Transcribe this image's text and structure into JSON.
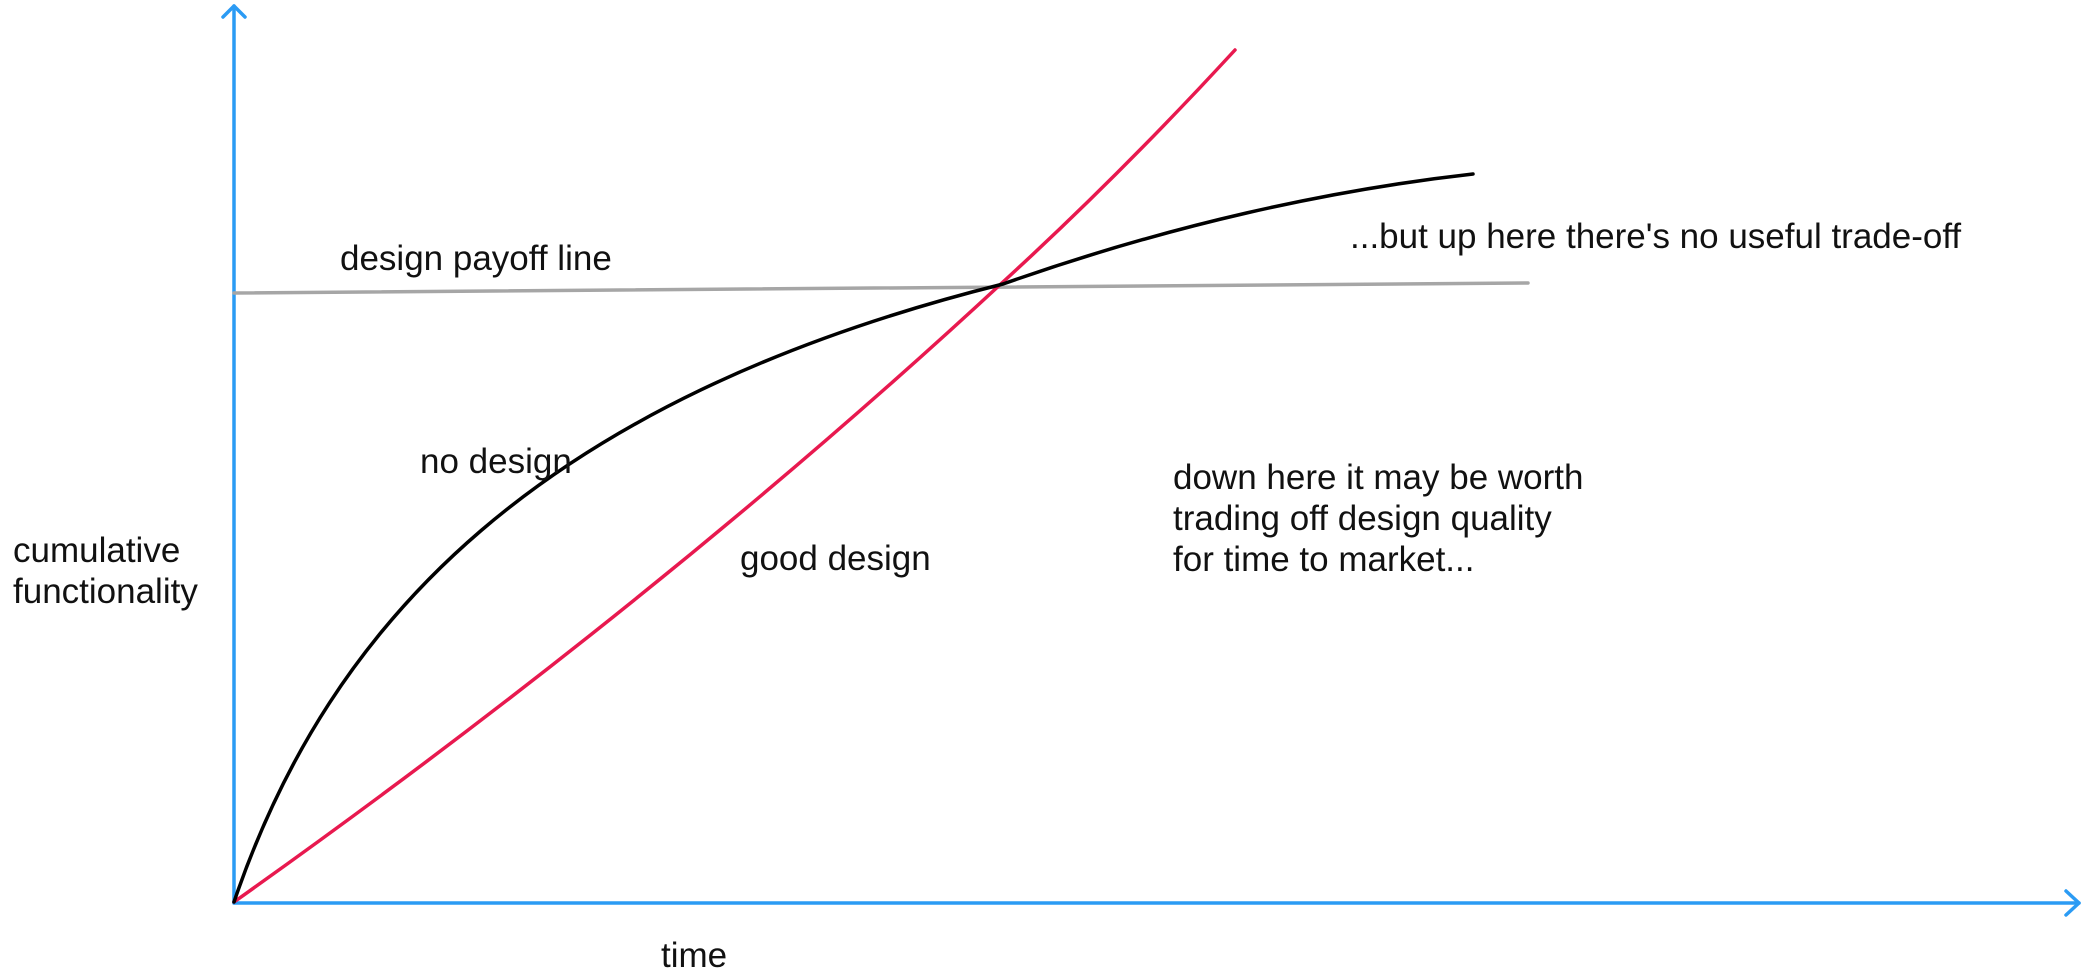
{
  "colors": {
    "axis": "#2b9bf4",
    "no_design": "#000000",
    "good_design": "#e8194f",
    "payoff_line": "#a6a6a6",
    "text": "#111111"
  },
  "axes": {
    "x_label": "time",
    "y_label": [
      "cumulative",
      "functionality"
    ]
  },
  "curves": {
    "no_design": {
      "label": "no design",
      "shape": "concave, rising steeply then flattening"
    },
    "good_design": {
      "label": "good design",
      "shape": "convex, starting lower and accelerating"
    },
    "payoff_line": {
      "label": "design payoff line",
      "shape": "near-horizontal line through the crossover point"
    }
  },
  "annotations": {
    "below": [
      "down here it may be worth",
      "trading off design quality",
      "for time to market..."
    ],
    "above": "...but up here there's no useful trade-off"
  }
}
